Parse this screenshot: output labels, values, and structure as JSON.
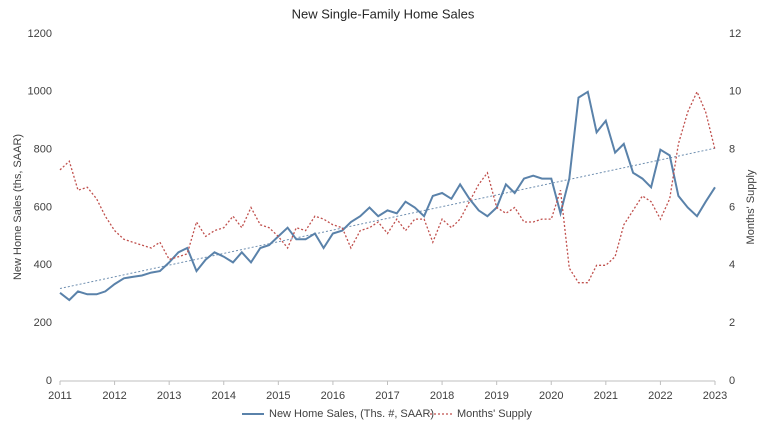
{
  "chart_data": {
    "type": "line",
    "title": "New Single-Family Home Sales",
    "y_label": "New Home Sales (ths, SAAR)",
    "y2_label": "Months' Supply",
    "x": [
      2011,
      2011.17,
      2011.33,
      2011.5,
      2011.67,
      2011.83,
      2012,
      2012.17,
      2012.33,
      2012.5,
      2012.67,
      2012.83,
      2013,
      2013.17,
      2013.33,
      2013.5,
      2013.67,
      2013.83,
      2014,
      2014.17,
      2014.33,
      2014.5,
      2014.67,
      2014.83,
      2015,
      2015.17,
      2015.33,
      2015.5,
      2015.67,
      2015.83,
      2016,
      2016.17,
      2016.33,
      2016.5,
      2016.67,
      2016.83,
      2017,
      2017.17,
      2017.33,
      2017.5,
      2017.67,
      2017.83,
      2018,
      2018.17,
      2018.33,
      2018.5,
      2018.67,
      2018.83,
      2019,
      2019.17,
      2019.33,
      2019.5,
      2019.67,
      2019.83,
      2020,
      2020.17,
      2020.33,
      2020.5,
      2020.67,
      2020.83,
      2021,
      2021.17,
      2021.33,
      2021.5,
      2021.67,
      2021.83,
      2022,
      2022.17,
      2022.33,
      2022.5,
      2022.67,
      2022.83,
      2023
    ],
    "series": [
      {
        "name": "New Home Sales, (Ths. #, SAAR)",
        "color": "#5a82aa",
        "style": "solid",
        "axis": "y",
        "values": [
          305,
          280,
          310,
          300,
          300,
          310,
          335,
          355,
          360,
          365,
          375,
          380,
          410,
          445,
          460,
          380,
          420,
          445,
          430,
          410,
          445,
          410,
          460,
          470,
          500,
          530,
          490,
          490,
          510,
          460,
          510,
          520,
          550,
          570,
          600,
          570,
          590,
          580,
          620,
          600,
          570,
          640,
          650,
          630,
          680,
          630,
          590,
          570,
          600,
          680,
          650,
          700,
          710,
          700,
          700,
          580,
          700,
          980,
          1000,
          860,
          900,
          790,
          820,
          720,
          700,
          670,
          800,
          780,
          640,
          600,
          570,
          620,
          670
        ]
      },
      {
        "name": "Months' Supply",
        "color": "#c0504d",
        "style": "dotted",
        "axis": "y2",
        "values": [
          7.3,
          7.6,
          6.6,
          6.7,
          6.3,
          5.7,
          5.2,
          4.9,
          4.8,
          4.7,
          4.6,
          4.8,
          4.2,
          4.3,
          4.4,
          5.5,
          5.0,
          5.2,
          5.3,
          5.7,
          5.3,
          6.0,
          5.4,
          5.3,
          5.0,
          4.6,
          5.3,
          5.2,
          5.7,
          5.6,
          5.4,
          5.3,
          4.6,
          5.2,
          5.3,
          5.5,
          5.1,
          5.6,
          5.2,
          5.6,
          5.6,
          4.8,
          5.6,
          5.3,
          5.6,
          6.2,
          6.8,
          7.2,
          6.0,
          5.8,
          6.0,
          5.5,
          5.5,
          5.6,
          5.6,
          6.6,
          3.9,
          3.4,
          3.4,
          4.0,
          4.0,
          4.3,
          5.4,
          5.9,
          6.4,
          6.2,
          5.6,
          6.3,
          8.2,
          9.3,
          10.0,
          9.3,
          8.0
        ]
      }
    ],
    "trend": {
      "x": [
        2011,
        2023
      ],
      "values": [
        320,
        805
      ],
      "color": "#6f8fb0",
      "style": "dotted"
    },
    "xlim": [
      2011,
      2023
    ],
    "xticks": [
      2011,
      2012,
      2013,
      2014,
      2015,
      2016,
      2017,
      2018,
      2019,
      2020,
      2021,
      2022,
      2023
    ],
    "ylim": [
      0,
      1200
    ],
    "yticks": [
      0,
      200,
      400,
      600,
      800,
      1000,
      1200
    ],
    "y2lim": [
      0,
      12
    ],
    "y2ticks": [
      0,
      2,
      4,
      6,
      8,
      10,
      12
    ],
    "grid": false,
    "legend": "bottom"
  }
}
